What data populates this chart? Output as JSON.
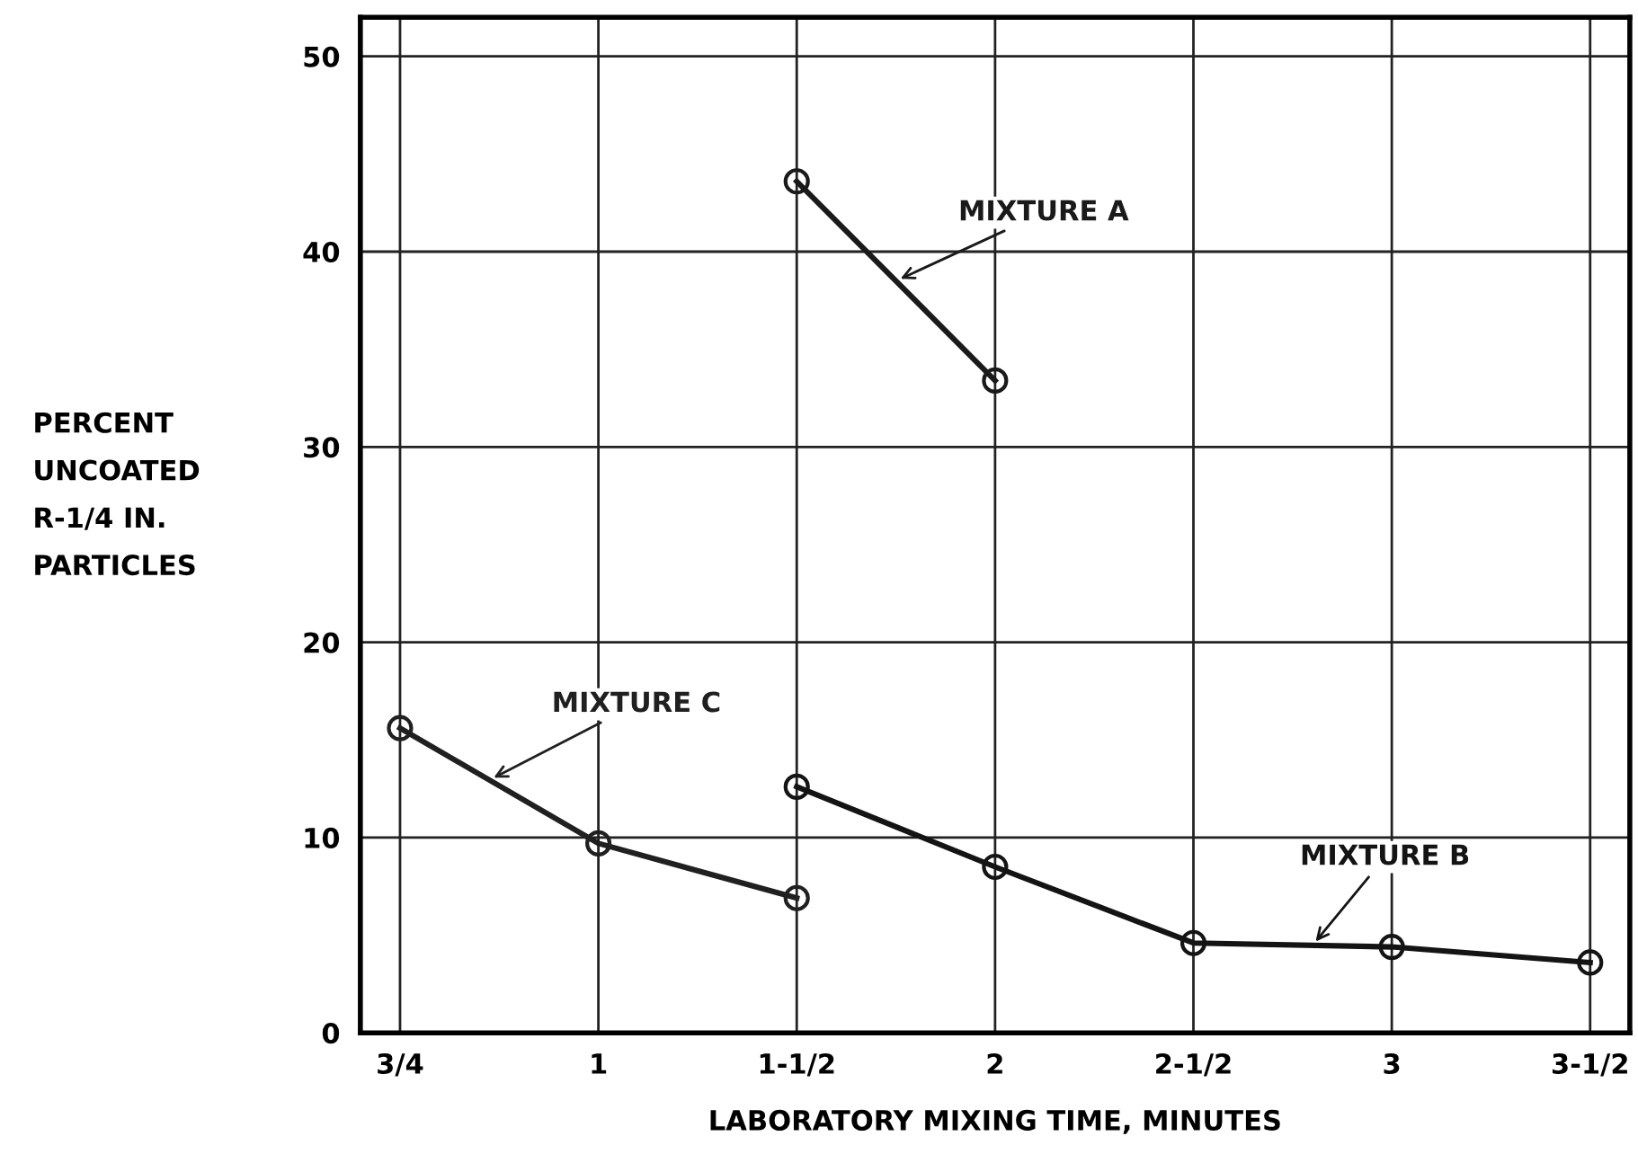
{
  "chart_data": {
    "type": "line",
    "xlabel": "LABORATORY MIXING TIME, MINUTES",
    "ylabel": "PERCENT\nUNCOATED\nR-1/4 IN.\nPARTICLES",
    "categories": [
      "3/4",
      "1",
      "1-1/2",
      "2",
      "2-1/2",
      "3",
      "3-1/2"
    ],
    "series": [
      {
        "name": "MIXTURE A",
        "color": "#1a1a1a",
        "values": [
          null,
          null,
          43.6,
          33.4,
          null,
          null,
          null
        ]
      },
      {
        "name": "MIXTURE B",
        "color": "#141414",
        "values": [
          null,
          null,
          12.6,
          8.5,
          4.6,
          4.4,
          3.6
        ]
      },
      {
        "name": "MIXTURE C",
        "color": "#202020",
        "values": [
          15.6,
          9.7,
          6.9,
          null,
          null,
          null,
          null
        ]
      }
    ],
    "ylim": [
      0,
      52
    ],
    "yticks": [
      0,
      10,
      20,
      30,
      40,
      50
    ],
    "grid": true,
    "marker": "circle",
    "line_style": "solid",
    "legend": false
  }
}
